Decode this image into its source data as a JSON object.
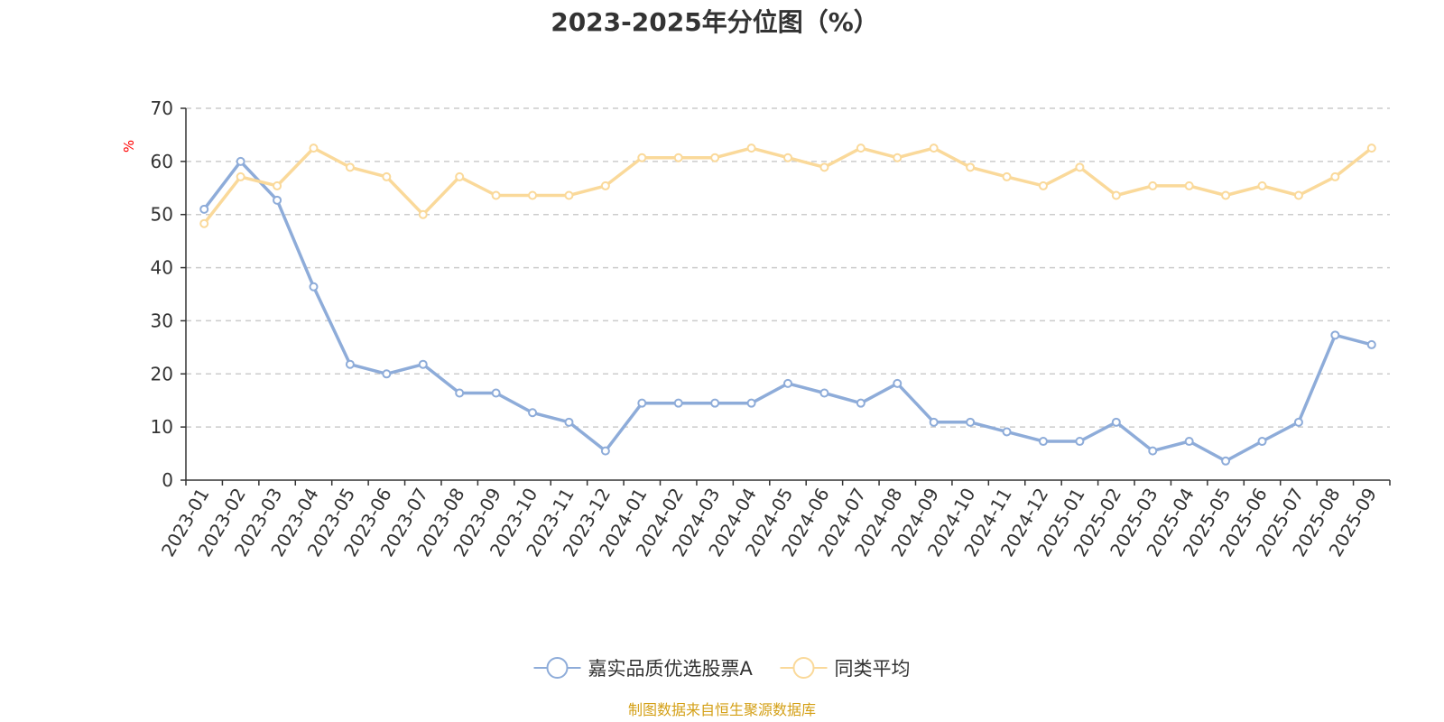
{
  "chart_data": {
    "type": "line",
    "title": "2023-2025年分位图（%）",
    "ylabel": "%",
    "xlabel": "",
    "ylim": [
      0,
      70
    ],
    "yticks": [
      0,
      10,
      20,
      30,
      40,
      50,
      60,
      70
    ],
    "grid": true,
    "legend_position": "bottom-center",
    "categories": [
      "2023-01",
      "2023-02",
      "2023-03",
      "2023-04",
      "2023-05",
      "2023-06",
      "2023-07",
      "2023-08",
      "2023-09",
      "2023-10",
      "2023-11",
      "2023-12",
      "2024-01",
      "2024-02",
      "2024-03",
      "2024-04",
      "2024-05",
      "2024-06",
      "2024-07",
      "2024-08",
      "2024-09",
      "2024-10",
      "2024-11",
      "2024-12",
      "2025-01",
      "2025-02",
      "2025-03",
      "2025-04",
      "2025-05",
      "2025-06",
      "2025-07",
      "2025-08",
      "2025-09"
    ],
    "series": [
      {
        "name": "嘉实品质优选股票A",
        "color": "#8eacd9",
        "values": [
          51.0,
          60.0,
          52.7,
          36.4,
          21.8,
          20.0,
          21.8,
          16.4,
          16.4,
          12.7,
          10.9,
          5.5,
          14.5,
          14.5,
          14.5,
          14.5,
          18.2,
          16.4,
          14.5,
          18.2,
          10.9,
          10.9,
          9.1,
          7.3,
          7.3,
          10.9,
          5.5,
          7.3,
          3.6,
          7.3,
          10.9,
          27.3,
          25.5
        ]
      },
      {
        "name": "同类平均",
        "color": "#fad99a",
        "values": [
          48.3,
          57.1,
          55.4,
          62.5,
          58.9,
          57.1,
          50.0,
          57.1,
          53.6,
          53.6,
          53.6,
          55.4,
          60.7,
          60.7,
          60.7,
          62.5,
          60.7,
          58.9,
          62.5,
          60.7,
          62.5,
          58.9,
          57.1,
          55.4,
          58.9,
          53.6,
          55.4,
          55.4,
          53.6,
          55.4,
          53.6,
          57.1,
          62.5
        ]
      }
    ],
    "source": "制图数据来自恒生聚源数据库"
  }
}
